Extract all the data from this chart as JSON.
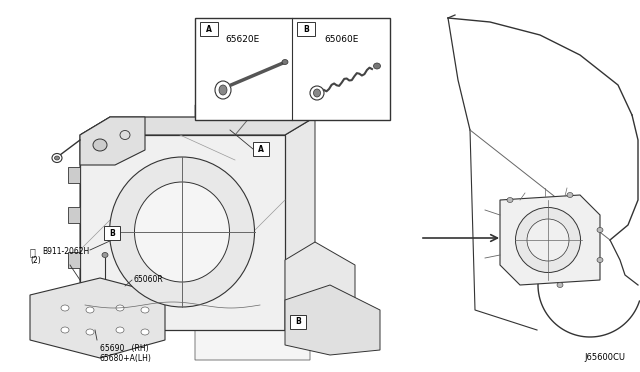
{
  "bg_color": "#ffffff",
  "part_labels": {
    "A_part": "65620E",
    "B_part": "65060E",
    "main_part1": "65060R",
    "main_part2": "65690   (RH)",
    "main_part3": "65680+A(LH)",
    "bolt_label": "N0B911-2062H\n(2)"
  },
  "diagram_code": "J65600CU",
  "line_color": "#333333",
  "light_line": "#666666",
  "faint_line": "#999999"
}
